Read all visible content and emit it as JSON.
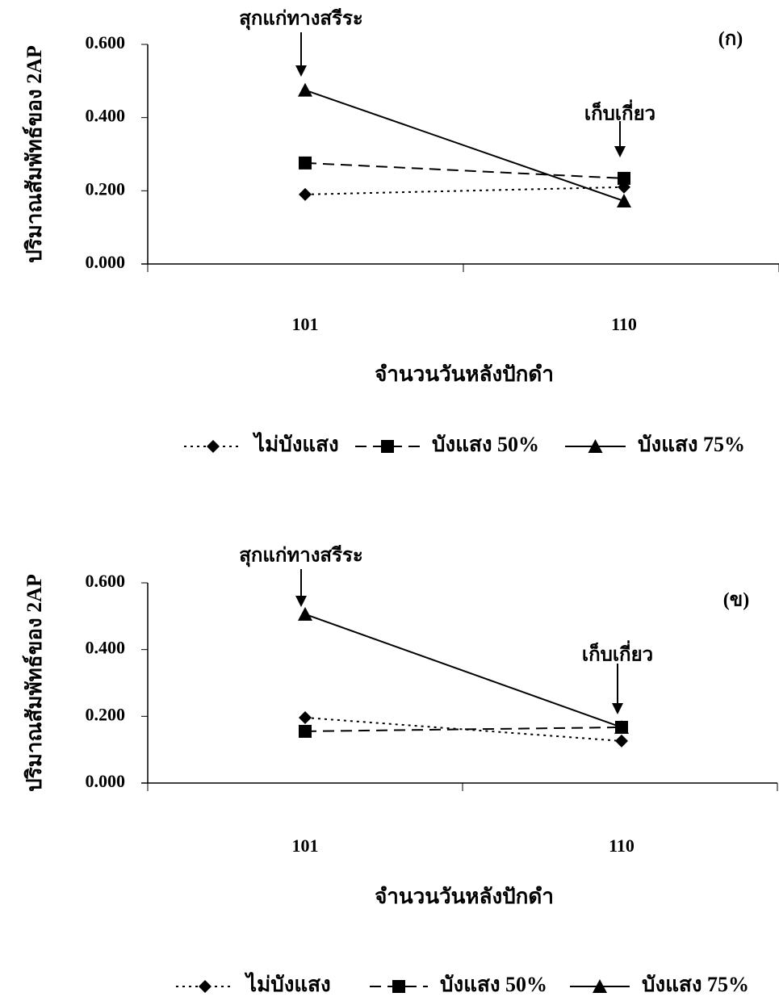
{
  "chart_data": [
    {
      "type": "line",
      "panel_label": "(ก)",
      "y_label": "ปริมาณสัมพัทธ์ของ 2AP",
      "x_label": "จำนวนวันหลังปักดำ",
      "categories": [
        "101",
        "110"
      ],
      "annotations": [
        "สุกแก่ทางสรีระ",
        "เก็บเกี่ยว"
      ],
      "ylim": [
        0,
        0.6
      ],
      "yticks": [
        {
          "value": 0,
          "label": "0.000"
        },
        {
          "value": 0.2,
          "label": "0.200"
        },
        {
          "value": 0.4,
          "label": "0.400"
        },
        {
          "value": 0.6,
          "label": "0.600"
        }
      ],
      "series": [
        {
          "name": "ไม่บังแสง",
          "color": "#000000",
          "marker": "diamond",
          "dash": "dotted",
          "values": [
            0.19,
            0.21
          ]
        },
        {
          "name": "บังแสง 50%",
          "color": "#000000",
          "marker": "square",
          "dash": "dashed",
          "values": [
            0.276,
            0.234
          ]
        },
        {
          "name": "บังแสง 75%",
          "color": "#000000",
          "marker": "triangle",
          "dash": "solid",
          "values": [
            0.475,
            0.172
          ]
        }
      ],
      "legend": "bottom"
    },
    {
      "type": "line",
      "panel_label": "(ข)",
      "y_label": "ปริมาณสัมพัทธ์ของ 2AP",
      "x_label": "จำนวนวันหลังปักดำ",
      "categories": [
        "101",
        "110"
      ],
      "annotations": [
        "สุกแก่ทางสรีระ",
        "เก็บเกี่ยว"
      ],
      "ylim": [
        0,
        0.6
      ],
      "yticks": [
        {
          "value": 0,
          "label": "0.000"
        },
        {
          "value": 0.2,
          "label": "0.200"
        },
        {
          "value": 0.4,
          "label": "0.400"
        },
        {
          "value": 0.6,
          "label": "0.600"
        }
      ],
      "series": [
        {
          "name": "ไม่บังแสง",
          "color": "#000000",
          "marker": "diamond",
          "dash": "dotted",
          "values": [
            0.196,
            0.126
          ]
        },
        {
          "name": "บังแสง 50%",
          "color": "#000000",
          "marker": "square",
          "dash": "dashed",
          "values": [
            0.155,
            0.167
          ]
        },
        {
          "name": "บังแสง 75%",
          "color": "#000000",
          "marker": "triangle",
          "dash": "solid",
          "values": [
            0.506,
            0.167
          ]
        }
      ],
      "legend": "bottom"
    }
  ]
}
